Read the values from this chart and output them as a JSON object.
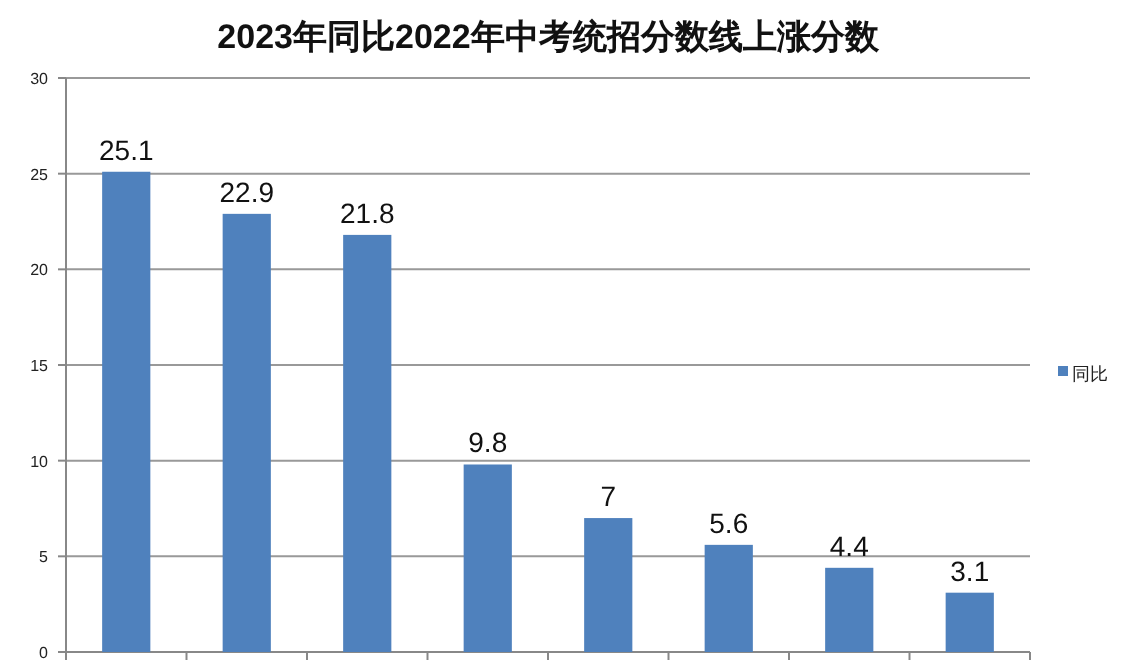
{
  "chart_data": {
    "type": "bar",
    "title": "2023年同比2022年中考统招分数线上涨分数",
    "categories": [
      null,
      null,
      null,
      null,
      null,
      null,
      null,
      null
    ],
    "series": [
      {
        "name": "同比",
        "color": "#4f81bd",
        "values": [
          25.1,
          22.9,
          21.8,
          9.8,
          7,
          5.6,
          4.4,
          3.1
        ]
      }
    ],
    "ylim": [
      0,
      30
    ],
    "yticks": [
      0,
      5,
      10,
      15,
      20,
      25,
      30
    ],
    "grid": "y",
    "legend": "right",
    "data_labels": true
  }
}
